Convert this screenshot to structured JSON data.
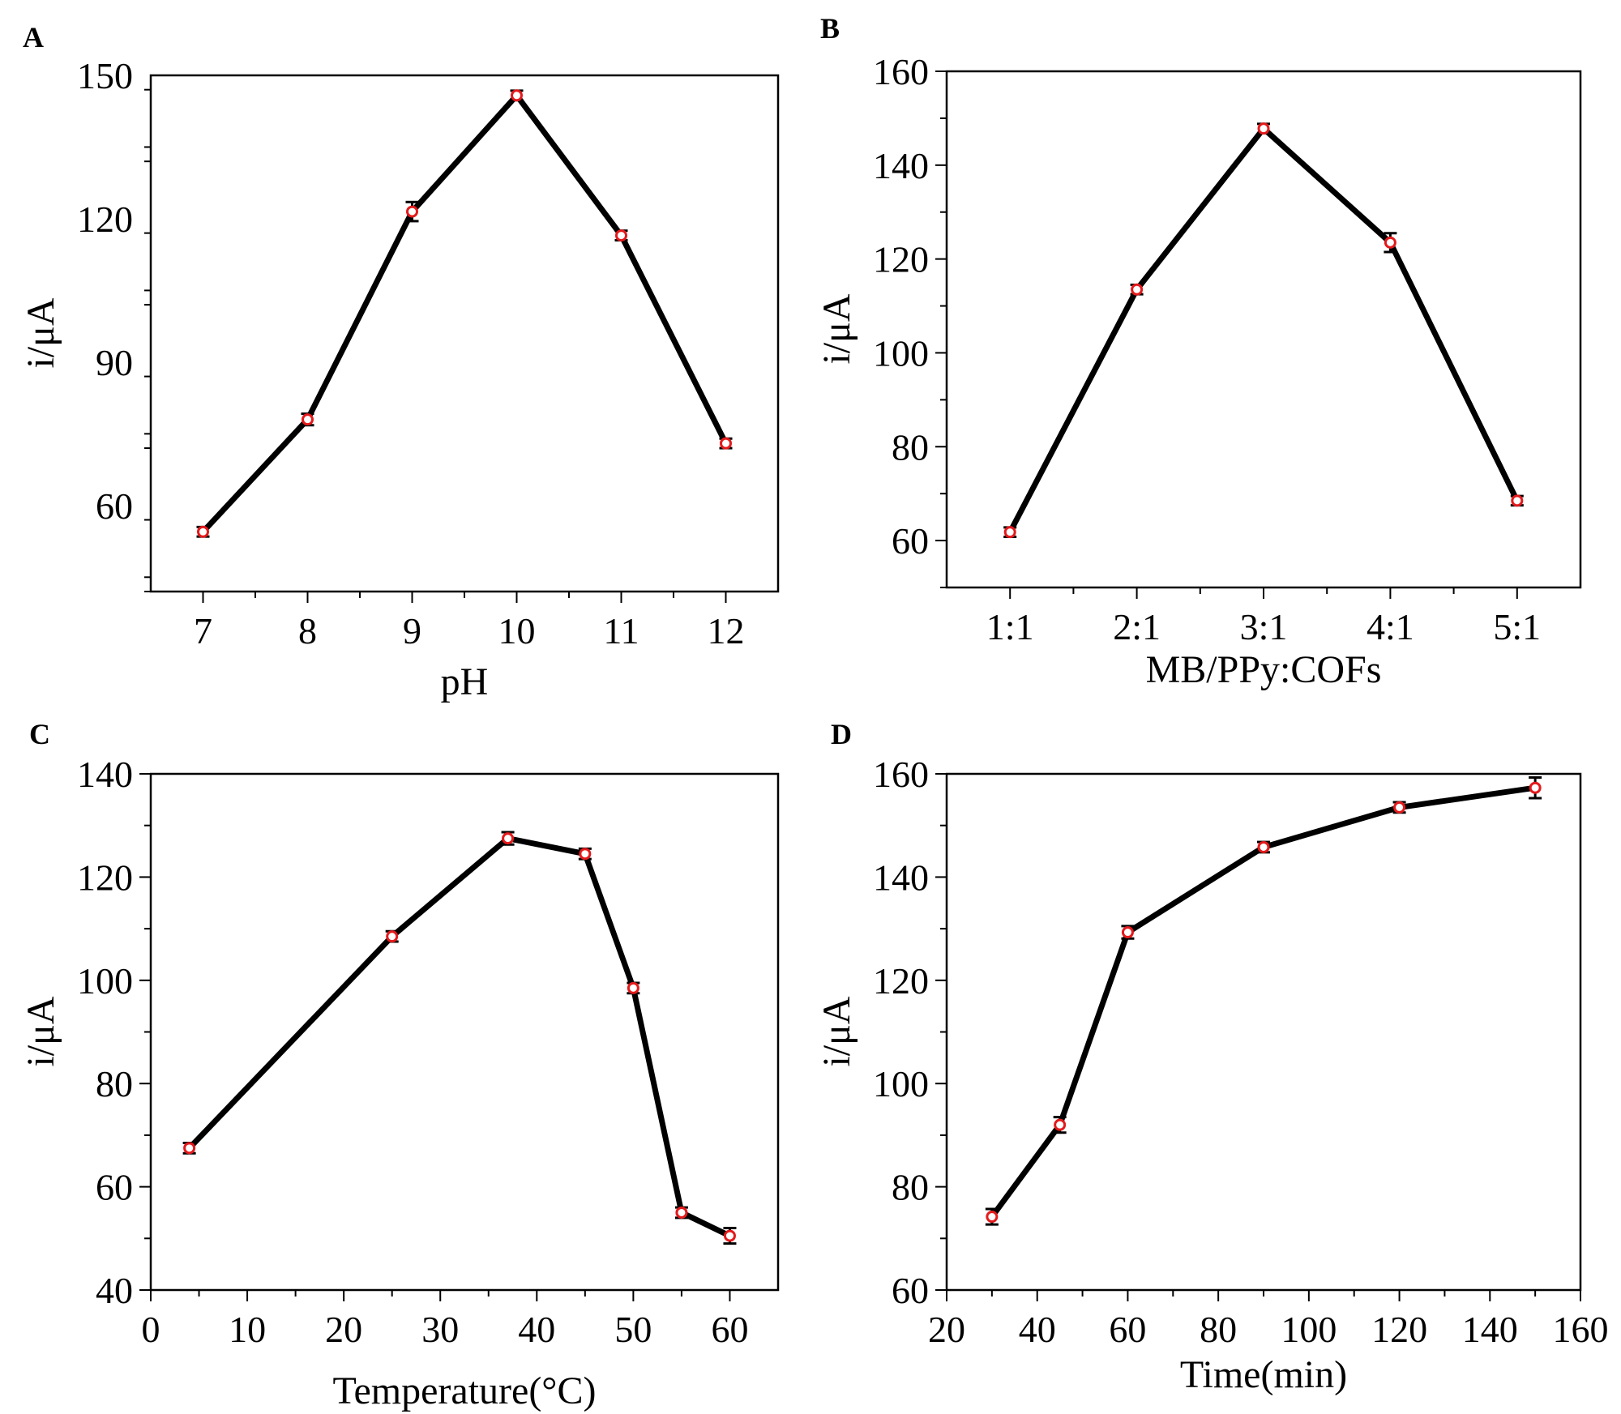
{
  "colors": {
    "line": "#000000",
    "marker": "#e31a1c",
    "axis": "#000000"
  },
  "chart_data": [
    {
      "panel": "A",
      "type": "line",
      "xscale": "linear",
      "x": [
        7,
        8,
        9,
        10,
        11,
        12
      ],
      "values": [
        54.5,
        78,
        121.5,
        145.8,
        116.5,
        73
      ],
      "errors": [
        1.0,
        1.2,
        2.0,
        1.0,
        1.0,
        1.0
      ],
      "xlim": [
        6.5,
        12.5
      ],
      "ylim": [
        42,
        150
      ],
      "xticks": [
        7,
        8,
        9,
        10,
        11,
        12
      ],
      "yticks": [
        60,
        90,
        120,
        150
      ],
      "xlabel": "pH",
      "ylabel": "i/μA"
    },
    {
      "panel": "B",
      "type": "line",
      "xscale": "category",
      "categories": [
        "1:1",
        "2:1",
        "3:1",
        "4:1",
        "5:1"
      ],
      "values": [
        61.8,
        113.5,
        147.8,
        123.5,
        68.5
      ],
      "errors": [
        1.0,
        1.0,
        1.0,
        2.0,
        1.0
      ],
      "ylim": [
        50,
        160
      ],
      "yticks": [
        60,
        80,
        100,
        120,
        140,
        160
      ],
      "xlabel": "MB/PPy:COFs",
      "ylabel": "i/μA"
    },
    {
      "panel": "C",
      "type": "line",
      "xscale": "linear",
      "x": [
        4,
        25,
        37,
        45,
        50,
        55,
        60
      ],
      "values": [
        67.5,
        108.5,
        127.5,
        124.5,
        98.5,
        55,
        50.5
      ],
      "errors": [
        1.0,
        1.0,
        1.2,
        1.0,
        1.0,
        1.0,
        1.5
      ],
      "xlim": [
        0,
        65
      ],
      "ylim": [
        40,
        140
      ],
      "xticks": [
        0,
        10,
        20,
        30,
        40,
        50,
        60
      ],
      "yticks": [
        40,
        60,
        80,
        100,
        120,
        140
      ],
      "xlabel": "Temperature(°C)",
      "ylabel": "i/μA"
    },
    {
      "panel": "D",
      "type": "line",
      "xscale": "linear",
      "x": [
        30,
        45,
        60,
        90,
        120,
        150
      ],
      "values": [
        74.2,
        92,
        129.3,
        145.8,
        153.5,
        157.3
      ],
      "errors": [
        1.5,
        1.5,
        1.2,
        1.0,
        1.0,
        2.0
      ],
      "xlim": [
        20,
        160
      ],
      "ylim": [
        60,
        160
      ],
      "xticks": [
        20,
        40,
        60,
        80,
        100,
        120,
        140,
        160
      ],
      "yticks": [
        60,
        80,
        100,
        120,
        140,
        160
      ],
      "xlabel": "Time(min)",
      "ylabel": "i/μA"
    }
  ]
}
